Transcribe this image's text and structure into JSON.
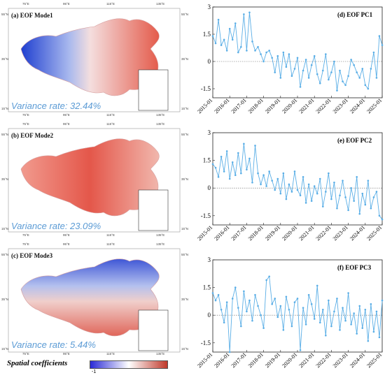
{
  "maps": [
    {
      "title": "(a) EOF Mode1",
      "variance": "Variance rate: 32.44%",
      "ticks": {
        "top": [
          "75°E",
          "95°E",
          "115°E",
          "135°E"
        ],
        "left": [
          "55°N",
          "35°N",
          "15°N"
        ],
        "right": [
          "55°N",
          "35°N",
          "15°N"
        ],
        "bottom": [
          "75°E",
          "95°E",
          "115°E",
          "135°E"
        ]
      }
    },
    {
      "title": "(b) EOF Mode2",
      "variance": "Variance rate: 23.09%",
      "ticks": {
        "top": [
          "75°E",
          "95°E",
          "115°E",
          "135°E"
        ],
        "left": [
          "55°N",
          "35°N",
          "15°N"
        ],
        "right": [
          "55°N",
          "35°N",
          "15°N"
        ],
        "bottom": [
          "75°E",
          "95°E",
          "115°E",
          "135°E"
        ]
      }
    },
    {
      "title": "(c) EOF Mode3",
      "variance": "Variance rate: 5.44%",
      "ticks": {
        "top": [
          "75°E",
          "95°E",
          "115°E",
          "135°E"
        ],
        "left": [
          "55°N",
          "35°N",
          "15°N"
        ],
        "right": [
          "55°N",
          "35°N",
          "15°N"
        ],
        "bottom": [
          "75°E",
          "95°E",
          "115°E",
          "135°E"
        ]
      }
    }
  ],
  "colorbar": {
    "label": "Spatial coefficients",
    "min_label": "-1",
    "colors": [
      "#2b2bd6",
      "#ffffff",
      "#c0392b"
    ]
  },
  "chart_data": [
    {
      "type": "line",
      "title": "(d) EOF PC1",
      "x": [
        "2015-01",
        "2015-03",
        "2015-05",
        "2015-07",
        "2015-09",
        "2015-11",
        "2016-01",
        "2016-03",
        "2016-05",
        "2016-07",
        "2016-09",
        "2016-11",
        "2017-01",
        "2017-03",
        "2017-05",
        "2017-07",
        "2017-09",
        "2017-11",
        "2018-01",
        "2018-03",
        "2018-05",
        "2018-07",
        "2018-09",
        "2018-11",
        "2019-01",
        "2019-03",
        "2019-05",
        "2019-07",
        "2019-09",
        "2019-11",
        "2020-01",
        "2020-03",
        "2020-05",
        "2020-07",
        "2020-09",
        "2020-11",
        "2021-01",
        "2021-03",
        "2021-05",
        "2021-07",
        "2021-09",
        "2021-11",
        "2022-01",
        "2022-03",
        "2022-05",
        "2022-07",
        "2022-09",
        "2022-11",
        "2023-01",
        "2023-03",
        "2023-05",
        "2023-07",
        "2023-09",
        "2023-11",
        "2024-01",
        "2024-03",
        "2024-05",
        "2024-07",
        "2024-09",
        "2024-11",
        "2025-01"
      ],
      "values": [
        1.4,
        1.0,
        2.3,
        0.9,
        1.2,
        0.6,
        1.8,
        1.2,
        2.1,
        0.5,
        0.8,
        2.6,
        0.6,
        2.7,
        1.1,
        0.6,
        0.8,
        0.4,
        0.0,
        0.5,
        0.6,
        0.2,
        -0.6,
        0.3,
        -0.9,
        0.5,
        -0.3,
        0.4,
        -0.8,
        -0.4,
        0.2,
        -1.4,
        -0.5,
        0.1,
        -0.9,
        -0.2,
        0.3,
        -0.7,
        -1.2,
        -0.5,
        0.4,
        -1.0,
        -0.6,
        0.0,
        -1.6,
        -0.5,
        -1.1,
        -1.3,
        -0.8,
        0.1,
        -0.2,
        -0.6,
        -0.9,
        -0.4,
        -1.3,
        -1.5,
        -0.4,
        0.5,
        -0.9,
        1.4,
        0.9
      ],
      "ylim": [
        -2,
        3
      ],
      "yticks": [
        3,
        1.5,
        0,
        -1.5
      ],
      "xticks": [
        "2015-01",
        "2016-01",
        "2017-01",
        "2018-01",
        "2019-01",
        "2020-01",
        "2021-01",
        "2022-01",
        "2023-01",
        "2024-01",
        "2025-01"
      ],
      "color": "#5aaee6"
    },
    {
      "type": "line",
      "title": "(e) EOF PC2",
      "x": [
        "2015-01",
        "2015-03",
        "2015-05",
        "2015-07",
        "2015-09",
        "2015-11",
        "2016-01",
        "2016-03",
        "2016-05",
        "2016-07",
        "2016-09",
        "2016-11",
        "2017-01",
        "2017-03",
        "2017-05",
        "2017-07",
        "2017-09",
        "2017-11",
        "2018-01",
        "2018-03",
        "2018-05",
        "2018-07",
        "2018-09",
        "2018-11",
        "2019-01",
        "2019-03",
        "2019-05",
        "2019-07",
        "2019-09",
        "2019-11",
        "2020-01",
        "2020-03",
        "2020-05",
        "2020-07",
        "2020-09",
        "2020-11",
        "2021-01",
        "2021-03",
        "2021-05",
        "2021-07",
        "2021-09",
        "2021-11",
        "2022-01",
        "2022-03",
        "2022-05",
        "2022-07",
        "2022-09",
        "2022-11",
        "2023-01",
        "2023-03",
        "2023-05",
        "2023-07",
        "2023-09",
        "2023-11",
        "2024-01",
        "2024-03",
        "2024-05",
        "2024-07",
        "2024-09",
        "2024-11",
        "2025-01"
      ],
      "values": [
        1.3,
        1.1,
        0.6,
        1.7,
        0.9,
        2.0,
        0.5,
        1.4,
        0.7,
        1.9,
        0.8,
        2.4,
        1.0,
        1.6,
        0.3,
        2.3,
        0.8,
        0.2,
        0.7,
        0.1,
        0.9,
        0.4,
        -0.1,
        0.5,
        -0.3,
        0.8,
        -0.6,
        0.2,
        -0.2,
        0.9,
        -0.1,
        -0.4,
        0.6,
        -0.8,
        0.2,
        -0.7,
        0.1,
        -0.3,
        0.5,
        -1.0,
        -0.2,
        0.8,
        -0.6,
        0.3,
        -1.1,
        -0.4,
        0.4,
        -0.5,
        -1.2,
        0.0,
        -0.7,
        0.6,
        -1.4,
        -0.3,
        -0.9,
        0.4,
        -1.1,
        -0.5,
        -0.2,
        -1.5,
        -1.7
      ],
      "ylim": [
        -2,
        3
      ],
      "yticks": [
        3,
        1.5,
        0,
        -1.5
      ],
      "xticks": [
        "2015-01",
        "2016-01",
        "2017-01",
        "2018-01",
        "2019-01",
        "2020-01",
        "2021-01",
        "2022-01",
        "2023-01",
        "2024-01",
        "2025-01"
      ],
      "color": "#5aaee6"
    },
    {
      "type": "line",
      "title": "(f) EOF PC3",
      "x": [
        "2015-01",
        "2015-03",
        "2015-05",
        "2015-07",
        "2015-09",
        "2015-11",
        "2016-01",
        "2016-03",
        "2016-05",
        "2016-07",
        "2016-09",
        "2016-11",
        "2017-01",
        "2017-03",
        "2017-05",
        "2017-07",
        "2017-09",
        "2017-11",
        "2018-01",
        "2018-03",
        "2018-05",
        "2018-07",
        "2018-09",
        "2018-11",
        "2019-01",
        "2019-03",
        "2019-05",
        "2019-07",
        "2019-09",
        "2019-11",
        "2020-01",
        "2020-03",
        "2020-05",
        "2020-07",
        "2020-09",
        "2020-11",
        "2021-01",
        "2021-03",
        "2021-05",
        "2021-07",
        "2021-09",
        "2021-11",
        "2022-01",
        "2022-03",
        "2022-05",
        "2022-07",
        "2022-09",
        "2022-11",
        "2023-01",
        "2023-03",
        "2023-05",
        "2023-07",
        "2023-09",
        "2023-11",
        "2024-01",
        "2024-03",
        "2024-05",
        "2024-07",
        "2024-09",
        "2024-11",
        "2025-01"
      ],
      "values": [
        1.2,
        0.8,
        1.1,
        0.3,
        -0.4,
        0.7,
        -2.0,
        0.9,
        1.5,
        0.4,
        -0.6,
        1.3,
        0.2,
        0.8,
        -0.3,
        1.1,
        0.5,
        0.0,
        -0.7,
        1.9,
        2.1,
        0.6,
        0.9,
        -0.1,
        0.5,
        -0.8,
        1.0,
        0.3,
        -0.6,
        0.7,
        0.9,
        -1.9,
        0.4,
        -0.5,
        1.1,
        0.6,
        -0.2,
        1.6,
        -0.4,
        0.3,
        -1.1,
        0.8,
        -0.6,
        0.2,
        0.9,
        -0.8,
        0.4,
        -0.3,
        1.2,
        -0.5,
        0.1,
        -1.0,
        0.5,
        -0.7,
        0.3,
        -1.4,
        0.6,
        -0.9,
        0.2,
        -1.2,
        0.8
      ],
      "ylim": [
        -2,
        3
      ],
      "yticks": [
        3,
        1.5,
        0,
        -1.5
      ],
      "xticks": [
        "2015-01",
        "2016-01",
        "2017-01",
        "2018-01",
        "2019-01",
        "2020-01",
        "2021-01",
        "2022-01",
        "2023-01",
        "2024-01",
        "2025-01"
      ],
      "color": "#5aaee6"
    }
  ]
}
